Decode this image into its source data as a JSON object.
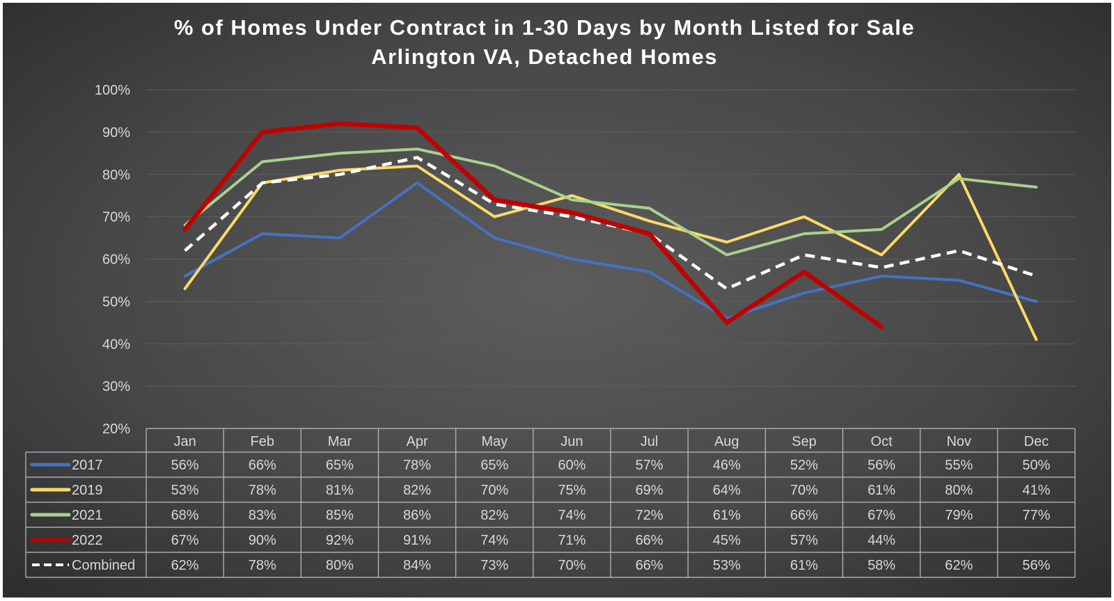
{
  "chart_data": {
    "type": "line",
    "title": "% of Homes Under Contract in 1-30 Days by Month Listed for Sale",
    "subtitle": "Arlington VA, Detached Homes",
    "categories": [
      "Jan",
      "Feb",
      "Mar",
      "Apr",
      "May",
      "Jun",
      "Jul",
      "Aug",
      "Sep",
      "Oct",
      "Nov",
      "Dec"
    ],
    "ylim": [
      20,
      100
    ],
    "yticks": [
      "100%",
      "90%",
      "80%",
      "70%",
      "60%",
      "50%",
      "40%",
      "30%",
      "20%"
    ],
    "grid": true,
    "legend": "data-table-bottom",
    "series": [
      {
        "name": "2017",
        "color": "#4472c4",
        "values": [
          56,
          66,
          65,
          78,
          65,
          60,
          57,
          46,
          52,
          56,
          55,
          50
        ],
        "labels": [
          "56%",
          "66%",
          "65%",
          "78%",
          "65%",
          "60%",
          "57%",
          "46%",
          "52%",
          "56%",
          "55%",
          "50%"
        ]
      },
      {
        "name": "2019",
        "color": "#ffd966",
        "values": [
          53,
          78,
          81,
          82,
          70,
          75,
          69,
          64,
          70,
          61,
          80,
          41
        ],
        "labels": [
          "53%",
          "78%",
          "81%",
          "82%",
          "70%",
          "75%",
          "69%",
          "64%",
          "70%",
          "61%",
          "80%",
          "41%"
        ]
      },
      {
        "name": "2021",
        "color": "#a9d18e",
        "values": [
          68,
          83,
          85,
          86,
          82,
          74,
          72,
          61,
          66,
          67,
          79,
          77
        ],
        "labels": [
          "68%",
          "83%",
          "85%",
          "86%",
          "82%",
          "74%",
          "72%",
          "61%",
          "66%",
          "67%",
          "79%",
          "77%"
        ]
      },
      {
        "name": "2022",
        "color": "#c00000",
        "values": [
          67,
          90,
          92,
          91,
          74,
          71,
          66,
          45,
          57,
          44,
          null,
          null
        ],
        "labels": [
          "67%",
          "90%",
          "92%",
          "91%",
          "74%",
          "71%",
          "66%",
          "45%",
          "57%",
          "44%",
          "",
          ""
        ]
      },
      {
        "name": "Combined",
        "color": "#ffffff",
        "dashed": true,
        "values": [
          62,
          78,
          80,
          84,
          73,
          70,
          66,
          53,
          61,
          58,
          62,
          56
        ],
        "labels": [
          "62%",
          "78%",
          "80%",
          "84%",
          "73%",
          "70%",
          "66%",
          "53%",
          "61%",
          "58%",
          "62%",
          "56%"
        ]
      }
    ]
  }
}
